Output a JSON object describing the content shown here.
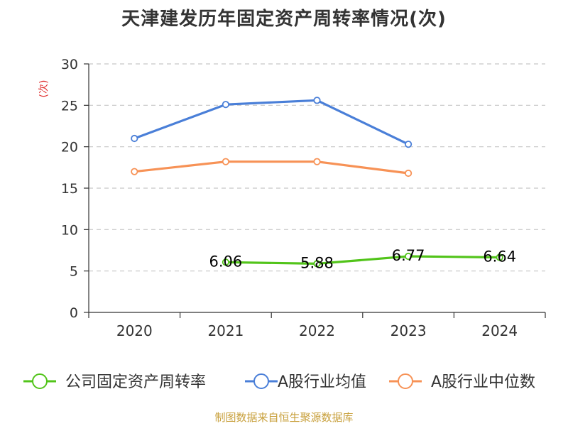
{
  "page": {
    "title": "天津建发历年固定资产周转率情况(次)",
    "source": "制图数据来自恒生聚源数据库"
  },
  "chart_data": {
    "type": "line",
    "title": "天津建发历年固定资产周转率情况(次)",
    "ylabel": "(次)",
    "xlabel": "",
    "categories": [
      "2020",
      "2021",
      "2022",
      "2023",
      "2024"
    ],
    "ylim": [
      0,
      30
    ],
    "yticks": [
      0,
      5,
      10,
      15,
      20,
      25,
      30
    ],
    "grid": true,
    "legend": "bottom",
    "series": [
      {
        "name": "公司固定资产周转率",
        "color": "#52c41a",
        "values": [
          null,
          6.06,
          5.88,
          6.77,
          6.64
        ],
        "labels": [
          "",
          "6.06",
          "5.88",
          "6.77",
          "6.64"
        ]
      },
      {
        "name": "A股行业均值",
        "color": "#4a7fd8",
        "values": [
          21.0,
          25.1,
          25.6,
          20.3,
          null
        ],
        "labels": []
      },
      {
        "name": "A股行业中位数",
        "color": "#f79256",
        "values": [
          17.0,
          18.2,
          18.2,
          16.8,
          null
        ],
        "labels": []
      }
    ]
  }
}
